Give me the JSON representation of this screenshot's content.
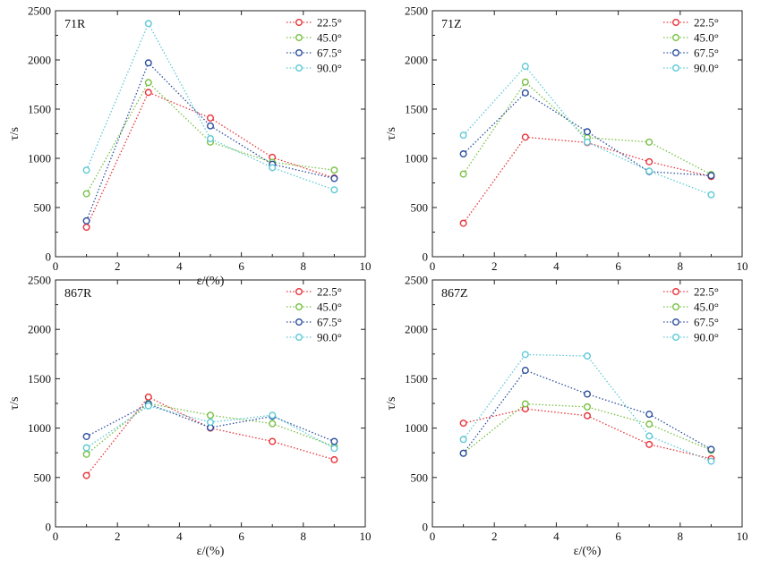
{
  "chart_data": [
    {
      "type": "line",
      "panel_label": "71R",
      "xlabel": "ε/(%)",
      "ylabel": "τ/s",
      "xlim": [
        0,
        10
      ],
      "ylim": [
        0,
        2500
      ],
      "xticks": [
        "0",
        "2",
        "4",
        "6",
        "8",
        "10"
      ],
      "yticks": [
        "0",
        "500",
        "1000",
        "1500",
        "2000",
        "2500"
      ],
      "legend_position": "top-right",
      "x": [
        1,
        3,
        5,
        7,
        9
      ],
      "series": [
        {
          "name": "22.5°",
          "color": "#e8333a",
          "values": [
            300,
            1670,
            1410,
            1010,
            800
          ]
        },
        {
          "name": "45.0°",
          "color": "#77c043",
          "values": [
            640,
            1770,
            1165,
            960,
            880
          ]
        },
        {
          "name": "67.5°",
          "color": "#2d4f9e",
          "values": [
            365,
            1970,
            1330,
            940,
            795
          ]
        },
        {
          "name": "90.0°",
          "color": "#5fc9d6",
          "values": [
            880,
            2370,
            1200,
            905,
            680
          ]
        }
      ]
    },
    {
      "type": "line",
      "panel_label": "71Z",
      "xlabel": "",
      "ylabel": "τ/s",
      "xlim": [
        0,
        10
      ],
      "ylim": [
        0,
        2500
      ],
      "xticks": [
        "0",
        "2",
        "4",
        "6",
        "8",
        "10"
      ],
      "yticks": [
        "0",
        "500",
        "1000",
        "1500",
        "2000",
        "2500"
      ],
      "legend_position": "top-right",
      "x": [
        1,
        3,
        5,
        7,
        9
      ],
      "series": [
        {
          "name": "22.5°",
          "color": "#e8333a",
          "values": [
            340,
            1215,
            1160,
            965,
            815
          ]
        },
        {
          "name": "45.0°",
          "color": "#77c043",
          "values": [
            840,
            1775,
            1210,
            1165,
            835
          ]
        },
        {
          "name": "67.5°",
          "color": "#2d4f9e",
          "values": [
            1045,
            1665,
            1270,
            865,
            825
          ]
        },
        {
          "name": "90.0°",
          "color": "#5fc9d6",
          "values": [
            1235,
            1935,
            1165,
            870,
            630
          ]
        }
      ]
    },
    {
      "type": "line",
      "panel_label": "867R",
      "xlabel": "ε/(%)",
      "ylabel": "τ/s",
      "xlim": [
        0,
        10
      ],
      "ylim": [
        0,
        2500
      ],
      "xticks": [
        "0",
        "2",
        "4",
        "6",
        "8",
        "10"
      ],
      "yticks": [
        "0",
        "500",
        "1000",
        "1500",
        "2000",
        "2500"
      ],
      "legend_position": "top-right",
      "x": [
        1,
        3,
        5,
        7,
        9
      ],
      "series": [
        {
          "name": "22.5°",
          "color": "#e8333a",
          "values": [
            520,
            1315,
            1000,
            865,
            680
          ]
        },
        {
          "name": "45.0°",
          "color": "#77c043",
          "values": [
            735,
            1250,
            1130,
            1045,
            815
          ]
        },
        {
          "name": "67.5°",
          "color": "#2d4f9e",
          "values": [
            915,
            1245,
            1005,
            1120,
            865
          ]
        },
        {
          "name": "90.0°",
          "color": "#5fc9d6",
          "values": [
            800,
            1225,
            1060,
            1130,
            795
          ]
        }
      ]
    },
    {
      "type": "line",
      "panel_label": "867Z",
      "xlabel": "ε/(%)",
      "ylabel": "τ/s",
      "xlim": [
        0,
        10
      ],
      "ylim": [
        0,
        2500
      ],
      "xticks": [
        "0",
        "2",
        "4",
        "6",
        "8",
        "10"
      ],
      "yticks": [
        "0",
        "500",
        "1000",
        "1500",
        "2000",
        "2500"
      ],
      "legend_position": "top-right",
      "x": [
        1,
        3,
        5,
        7,
        9
      ],
      "series": [
        {
          "name": "22.5°",
          "color": "#e8333a",
          "values": [
            1050,
            1195,
            1125,
            835,
            690
          ]
        },
        {
          "name": "45.0°",
          "color": "#77c043",
          "values": [
            745,
            1245,
            1215,
            1040,
            775
          ]
        },
        {
          "name": "67.5°",
          "color": "#2d4f9e",
          "values": [
            745,
            1585,
            1345,
            1140,
            785
          ]
        },
        {
          "name": "90.0°",
          "color": "#5fc9d6",
          "values": [
            885,
            1745,
            1730,
            920,
            665
          ]
        }
      ]
    }
  ]
}
